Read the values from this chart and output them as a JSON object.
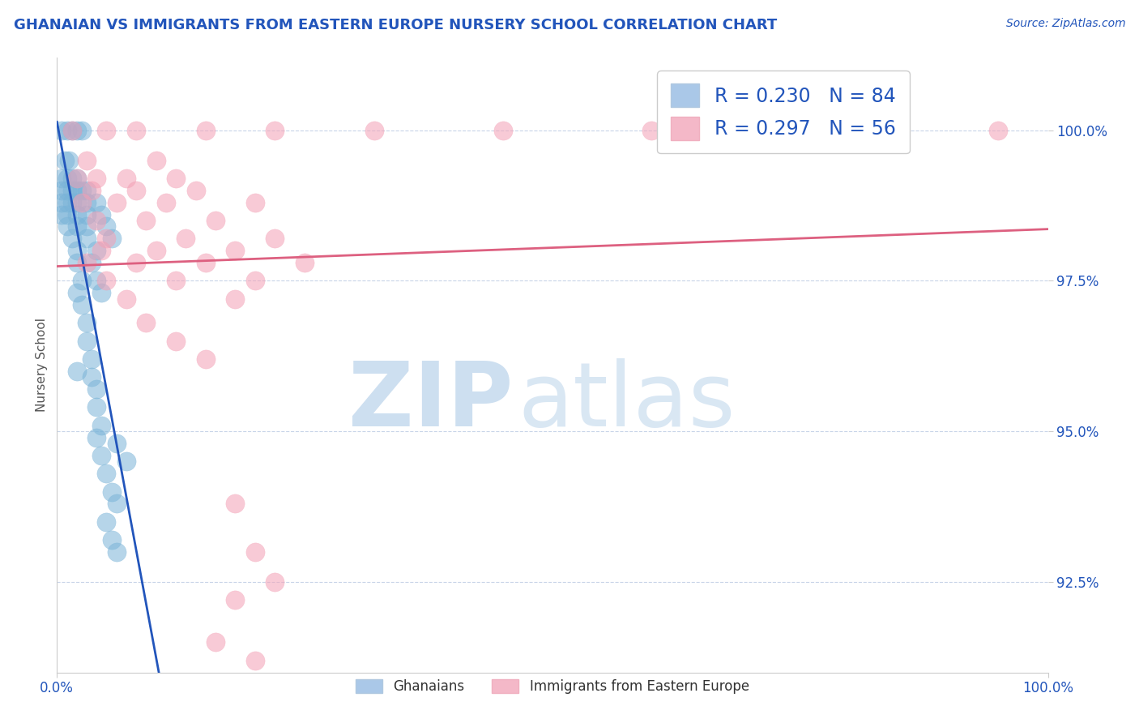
{
  "title": "GHANAIAN VS IMMIGRANTS FROM EASTERN EUROPE NURSERY SCHOOL CORRELATION CHART",
  "source_text": "Source: ZipAtlas.com",
  "ylabel": "Nursery School",
  "xlim": [
    0,
    100
  ],
  "ylim": [
    91.0,
    101.2
  ],
  "yticks": [
    92.5,
    95.0,
    97.5,
    100.0
  ],
  "ytick_labels": [
    "92.5%",
    "95.0%",
    "97.5%",
    "100.0%"
  ],
  "xtick_labels": [
    "0.0%",
    "100.0%"
  ],
  "blue_R": 0.23,
  "blue_N": 84,
  "pink_R": 0.297,
  "pink_N": 56,
  "legend_label_blue": "Ghanaians",
  "legend_label_pink": "Immigrants from Eastern Europe",
  "blue_color": "#7ab4d8",
  "pink_color": "#f4a0b5",
  "blue_line_color": "#2255bb",
  "pink_line_color": "#dd6080",
  "title_color": "#2255bb",
  "source_color": "#2255bb",
  "axis_label_color": "#555555",
  "legend_r_color": "#2255bb",
  "watermark_color": "#cddff0",
  "background_color": "#ffffff",
  "grid_color": "#c8d4e8",
  "blue_scatter": [
    [
      0.5,
      100.0
    ],
    [
      1.0,
      100.0
    ],
    [
      1.5,
      100.0
    ],
    [
      2.0,
      100.0
    ],
    [
      2.5,
      100.0
    ],
    [
      0.8,
      99.5
    ],
    [
      1.2,
      99.5
    ],
    [
      0.5,
      99.2
    ],
    [
      1.0,
      99.2
    ],
    [
      1.5,
      99.2
    ],
    [
      2.0,
      99.2
    ],
    [
      0.5,
      99.0
    ],
    [
      1.0,
      99.0
    ],
    [
      1.5,
      99.0
    ],
    [
      2.0,
      99.0
    ],
    [
      2.5,
      99.0
    ],
    [
      3.0,
      99.0
    ],
    [
      0.5,
      98.8
    ],
    [
      1.0,
      98.8
    ],
    [
      1.5,
      98.8
    ],
    [
      2.0,
      98.8
    ],
    [
      3.0,
      98.8
    ],
    [
      4.0,
      98.8
    ],
    [
      0.5,
      98.6
    ],
    [
      1.0,
      98.6
    ],
    [
      2.0,
      98.6
    ],
    [
      3.0,
      98.6
    ],
    [
      4.5,
      98.6
    ],
    [
      1.0,
      98.4
    ],
    [
      2.0,
      98.4
    ],
    [
      3.0,
      98.4
    ],
    [
      5.0,
      98.4
    ],
    [
      1.5,
      98.2
    ],
    [
      3.0,
      98.2
    ],
    [
      5.5,
      98.2
    ],
    [
      2.0,
      98.0
    ],
    [
      4.0,
      98.0
    ],
    [
      2.0,
      97.8
    ],
    [
      3.5,
      97.8
    ],
    [
      2.5,
      97.5
    ],
    [
      4.0,
      97.5
    ],
    [
      2.0,
      97.3
    ],
    [
      4.5,
      97.3
    ],
    [
      2.5,
      97.1
    ],
    [
      3.0,
      96.8
    ],
    [
      3.0,
      96.5
    ],
    [
      3.5,
      96.2
    ],
    [
      3.5,
      95.9
    ],
    [
      4.0,
      95.7
    ],
    [
      4.0,
      95.4
    ],
    [
      4.5,
      95.1
    ],
    [
      4.0,
      94.9
    ],
    [
      4.5,
      94.6
    ],
    [
      5.0,
      94.3
    ],
    [
      5.5,
      94.0
    ],
    [
      6.0,
      93.8
    ],
    [
      5.0,
      93.5
    ],
    [
      5.5,
      93.2
    ],
    [
      6.0,
      93.0
    ],
    [
      6.0,
      94.8
    ],
    [
      7.0,
      94.5
    ],
    [
      2.0,
      96.0
    ]
  ],
  "pink_scatter": [
    [
      1.5,
      100.0
    ],
    [
      5.0,
      100.0
    ],
    [
      8.0,
      100.0
    ],
    [
      15.0,
      100.0
    ],
    [
      22.0,
      100.0
    ],
    [
      32.0,
      100.0
    ],
    [
      45.0,
      100.0
    ],
    [
      60.0,
      100.0
    ],
    [
      95.0,
      100.0
    ],
    [
      3.0,
      99.5
    ],
    [
      10.0,
      99.5
    ],
    [
      2.0,
      99.2
    ],
    [
      4.0,
      99.2
    ],
    [
      7.0,
      99.2
    ],
    [
      12.0,
      99.2
    ],
    [
      3.5,
      99.0
    ],
    [
      8.0,
      99.0
    ],
    [
      14.0,
      99.0
    ],
    [
      2.5,
      98.8
    ],
    [
      6.0,
      98.8
    ],
    [
      11.0,
      98.8
    ],
    [
      20.0,
      98.8
    ],
    [
      4.0,
      98.5
    ],
    [
      9.0,
      98.5
    ],
    [
      16.0,
      98.5
    ],
    [
      5.0,
      98.2
    ],
    [
      13.0,
      98.2
    ],
    [
      22.0,
      98.2
    ],
    [
      4.5,
      98.0
    ],
    [
      10.0,
      98.0
    ],
    [
      18.0,
      98.0
    ],
    [
      3.0,
      97.8
    ],
    [
      8.0,
      97.8
    ],
    [
      15.0,
      97.8
    ],
    [
      25.0,
      97.8
    ],
    [
      5.0,
      97.5
    ],
    [
      12.0,
      97.5
    ],
    [
      20.0,
      97.5
    ],
    [
      7.0,
      97.2
    ],
    [
      18.0,
      97.2
    ],
    [
      9.0,
      96.8
    ],
    [
      12.0,
      96.5
    ],
    [
      15.0,
      96.2
    ],
    [
      18.0,
      93.8
    ],
    [
      20.0,
      93.0
    ],
    [
      18.0,
      92.2
    ],
    [
      22.0,
      92.5
    ],
    [
      16.0,
      91.5
    ],
    [
      20.0,
      91.2
    ]
  ]
}
